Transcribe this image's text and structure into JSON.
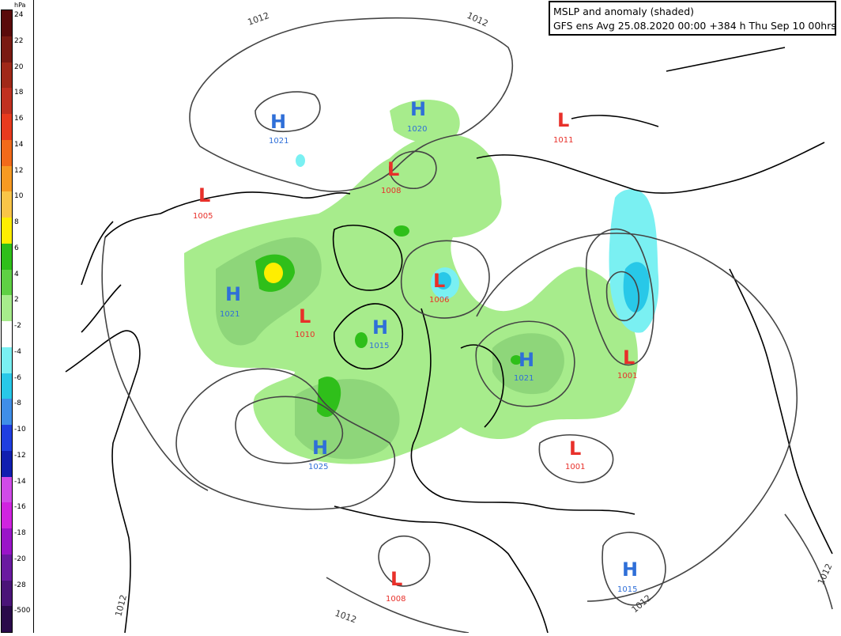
{
  "title": {
    "line1": "MSLP and anomaly (shaded)",
    "line2": "GFS ens Avg 25.08.2020 00:00 +384 h Thu Sep 10 00hrs"
  },
  "colorbar": {
    "unit": "hPa",
    "levels": [
      {
        "label": "24",
        "color": "#5a0a0a"
      },
      {
        "label": "22",
        "color": "#7a1a12"
      },
      {
        "label": "20",
        "color": "#a02818"
      },
      {
        "label": "18",
        "color": "#c03020"
      },
      {
        "label": "16",
        "color": "#e83a1e"
      },
      {
        "label": "14",
        "color": "#f26a1a"
      },
      {
        "label": "12",
        "color": "#f79a22"
      },
      {
        "label": "10",
        "color": "#f9c548"
      },
      {
        "label": "8",
        "color": "#ffee00"
      },
      {
        "label": "6",
        "color": "#2fbf1a"
      },
      {
        "label": "4",
        "color": "#5fd044"
      },
      {
        "label": "2",
        "color": "#a7ec8c"
      },
      {
        "label": "-2",
        "color": "#ffffff"
      },
      {
        "label": "-4",
        "color": "#7af0f2"
      },
      {
        "label": "-6",
        "color": "#28c8e8"
      },
      {
        "label": "-8",
        "color": "#3f8ee8"
      },
      {
        "label": "-10",
        "color": "#1f3ee0"
      },
      {
        "label": "-12",
        "color": "#101eb0"
      },
      {
        "label": "-14",
        "color": "#d04be8"
      },
      {
        "label": "-16",
        "color": "#d023e0"
      },
      {
        "label": "-18",
        "color": "#9a14c8"
      },
      {
        "label": "-20",
        "color": "#6a1aa0"
      },
      {
        "label": "-28",
        "color": "#4a1478"
      },
      {
        "label": "-500",
        "color": "#2a0a4a"
      }
    ]
  },
  "isobar_labels": [
    "1012",
    "1012",
    "1012",
    "1012",
    "1012",
    "1012"
  ],
  "pressure_centers": [
    {
      "type": "H",
      "value": "1021"
    },
    {
      "type": "H",
      "value": "1020"
    },
    {
      "type": "L",
      "value": "1011"
    },
    {
      "type": "L",
      "value": "1005"
    },
    {
      "type": "L",
      "value": "1008"
    },
    {
      "type": "H",
      "value": "1021"
    },
    {
      "type": "L",
      "value": "1010"
    },
    {
      "type": "L",
      "value": "1006"
    },
    {
      "type": "H",
      "value": "1015"
    },
    {
      "type": "H",
      "value": "1021"
    },
    {
      "type": "L",
      "value": "1001"
    },
    {
      "type": "H",
      "value": "1025"
    },
    {
      "type": "L",
      "value": "1001"
    },
    {
      "type": "L",
      "value": "1008"
    },
    {
      "type": "H",
      "value": "1015"
    }
  ],
  "colors": {
    "positive_light": "#a7ec8c",
    "positive_mid": "#8ed67a",
    "positive_strong": "#2fbf1a",
    "positive_max": "#ffee00",
    "negative_light": "#7af0f2",
    "negative_mid": "#28c8e8",
    "high_label": "#2f6fd8",
    "low_label": "#e8302a"
  }
}
